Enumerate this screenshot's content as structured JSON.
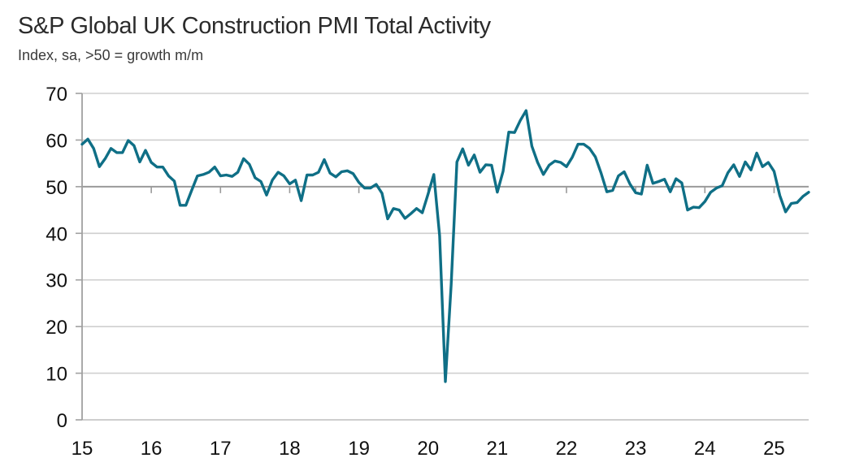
{
  "chart_data": {
    "type": "line",
    "title": "S&P Global UK Construction PMI Total Activity",
    "subtitle": "Index, sa, >50 = growth m/m",
    "xlabel": "",
    "ylabel": "",
    "ylim": [
      0,
      70
    ],
    "yticks": [
      "0",
      "10",
      "20",
      "30",
      "40",
      "50",
      "60",
      "70"
    ],
    "xticks": [
      "15",
      "16",
      "17",
      "18",
      "19",
      "20",
      "21",
      "22",
      "23",
      "24",
      "25"
    ],
    "x_start": "Jan 2015",
    "x_end": "Jun 2025",
    "frequency": "monthly",
    "grid": true,
    "legend": "none",
    "series": [
      {
        "name": "UK Construction PMI Total Activity",
        "color": "#0f6f86",
        "values": [
          59.1,
          60.2,
          58.2,
          54.3,
          56.0,
          58.2,
          57.3,
          57.3,
          59.9,
          58.8,
          55.3,
          57.8,
          55.2,
          54.2,
          54.2,
          52.3,
          51.2,
          46.0,
          46.0,
          49.2,
          52.3,
          52.6,
          53.1,
          54.2,
          52.3,
          52.5,
          52.2,
          53.1,
          56.0,
          54.8,
          51.9,
          51.1,
          48.2,
          51.4,
          53.1,
          52.3,
          50.6,
          51.4,
          47.0,
          52.5,
          52.5,
          53.1,
          55.8,
          52.9,
          52.1,
          53.2,
          53.4,
          52.8,
          50.9,
          49.7,
          49.7,
          50.5,
          48.6,
          43.1,
          45.3,
          45.0,
          43.2,
          44.2,
          45.3,
          44.4,
          48.4,
          52.6,
          39.5,
          8.2,
          28.9,
          55.3,
          58.1,
          54.6,
          56.8,
          53.1,
          54.7,
          54.6,
          48.8,
          53.3,
          61.7,
          61.6,
          64.2,
          66.3,
          58.7,
          55.2,
          52.6,
          54.6,
          55.5,
          55.2,
          54.3,
          56.3,
          59.1,
          59.1,
          58.2,
          56.4,
          52.9,
          48.9,
          49.2,
          52.3,
          53.2,
          50.6,
          48.7,
          48.4,
          54.6,
          50.7,
          51.1,
          51.6,
          48.9,
          51.7,
          50.8,
          45.0,
          45.6,
          45.5,
          46.8,
          48.8,
          49.7,
          50.2,
          53.0,
          54.7,
          52.2,
          55.3,
          53.6,
          57.2,
          54.3,
          55.2,
          53.3,
          48.1,
          44.6,
          46.4,
          46.6,
          47.9,
          48.8
        ]
      }
    ]
  }
}
